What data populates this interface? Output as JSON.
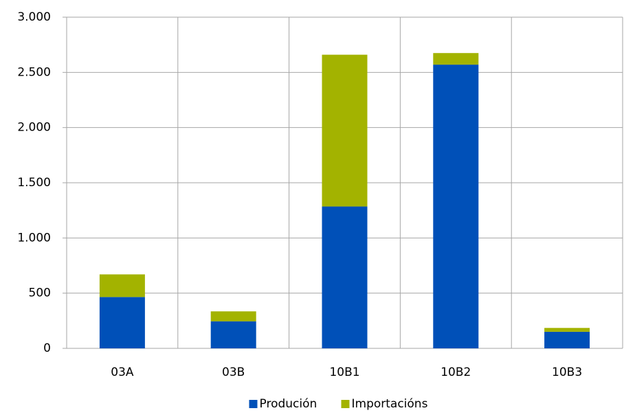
{
  "chart_data": {
    "type": "stacked_bar",
    "categories": [
      "03A",
      "03B",
      "10B1",
      "10B2",
      "10B3"
    ],
    "series": [
      {
        "name": "Produción",
        "color": "#0050b8",
        "values": [
          465,
          245,
          1285,
          2570,
          150
        ]
      },
      {
        "name": "Importacións",
        "color": "#a3b300",
        "values": [
          205,
          90,
          1375,
          105,
          35
        ]
      }
    ],
    "ylim": [
      0,
      3000
    ],
    "yticks": [
      0,
      500,
      {
        "value": 1000,
        "label": "1.000"
      },
      {
        "value": 1500,
        "label": "1.500"
      },
      {
        "value": 2000,
        "label": "2.000"
      },
      {
        "value": 2500,
        "label": "2.500"
      },
      {
        "value": 3000,
        "label": "3.000"
      }
    ],
    "grid": true,
    "legend": "bottom"
  }
}
